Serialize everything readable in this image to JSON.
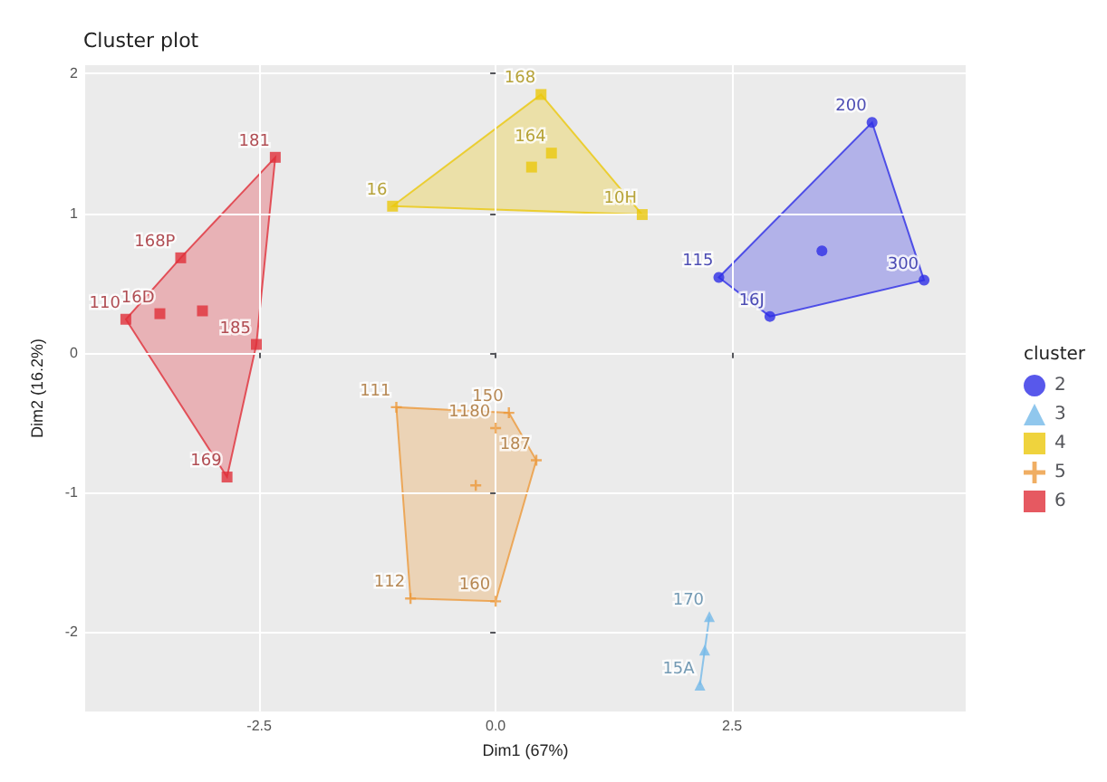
{
  "chart_data": {
    "type": "scatter",
    "title": "Cluster plot",
    "xlabel": "Dim1 (67%)",
    "ylabel": "Dim2 (16.2%)",
    "legend_title": "cluster",
    "legend": "right",
    "xlim": [
      -4.34,
      4.97
    ],
    "ylim": [
      -2.57,
      2.06
    ],
    "xticks": [
      {
        "value": -2.5,
        "label": "-2.5"
      },
      {
        "value": 0,
        "label": "0.0"
      },
      {
        "value": 2.5,
        "label": "2.5"
      }
    ],
    "yticks": [
      -2,
      -1,
      0,
      1,
      2
    ],
    "grid": true,
    "series": [
      {
        "name": "2",
        "color": "#2e2ee6",
        "marker": "circle",
        "x": [
          3.98,
          4.53,
          2.36,
          2.9,
          3.45
        ],
        "values": [
          1.65,
          0.52,
          0.54,
          0.26,
          0.73
        ]
      },
      {
        "name": "3",
        "color": "#74b9e8",
        "marker": "triangle",
        "x": [
          2.26,
          2.16,
          2.21
        ],
        "values": [
          -1.89,
          -2.38,
          -2.13
        ]
      },
      {
        "name": "4",
        "color": "#ebc80c",
        "marker": "square",
        "x": [
          -1.09,
          0.48,
          0.59,
          1.55,
          0.38
        ],
        "values": [
          1.05,
          1.85,
          1.43,
          0.99,
          1.33
        ]
      },
      {
        "name": "5",
        "color": "#ec9a3c",
        "marker": "cross",
        "x": [
          -1.05,
          0,
          0.14,
          0.43,
          -0.9,
          0,
          -0.21
        ],
        "values": [
          -0.39,
          -0.54,
          -0.43,
          -0.77,
          -1.76,
          -1.78,
          -0.95
        ]
      },
      {
        "name": "6",
        "color": "#e0303a",
        "marker": "square",
        "x": [
          -2.33,
          -3.33,
          -3.55,
          -3.91,
          -2.53,
          -2.84,
          -3.1
        ],
        "values": [
          1.4,
          0.68,
          0.28,
          0.24,
          0.06,
          -0.89,
          0.3
        ]
      }
    ],
    "annotations": [
      {
        "text": "200",
        "x": 3.98,
        "y": 1.65
      },
      {
        "text": "300",
        "x": 4.53,
        "y": 0.52
      },
      {
        "text": "115",
        "x": 2.36,
        "y": 0.54
      },
      {
        "text": "16J",
        "x": 2.9,
        "y": 0.26
      },
      {
        "text": "170",
        "x": 2.26,
        "y": -1.89
      },
      {
        "text": "15A",
        "x": 2.16,
        "y": -2.38
      },
      {
        "text": "16",
        "x": -1.09,
        "y": 1.05
      },
      {
        "text": "168",
        "x": 0.48,
        "y": 1.85
      },
      {
        "text": "164",
        "x": 0.59,
        "y": 1.43
      },
      {
        "text": "10H",
        "x": 1.55,
        "y": 0.99
      },
      {
        "text": "111",
        "x": -1.05,
        "y": -0.39
      },
      {
        "text": "1180",
        "x": 0,
        "y": -0.54
      },
      {
        "text": "150",
        "x": 0.14,
        "y": -0.43
      },
      {
        "text": "187",
        "x": 0.43,
        "y": -0.77
      },
      {
        "text": "112",
        "x": -0.9,
        "y": -1.76
      },
      {
        "text": "160",
        "x": 0,
        "y": -1.78
      },
      {
        "text": "181",
        "x": -2.33,
        "y": 1.4
      },
      {
        "text": "168P",
        "x": -3.33,
        "y": 0.68
      },
      {
        "text": "16D",
        "x": -3.55,
        "y": 0.28
      },
      {
        "text": "110",
        "x": -3.91,
        "y": 0.24
      },
      {
        "text": "185",
        "x": -2.53,
        "y": 0.06
      },
      {
        "text": "169",
        "x": -2.84,
        "y": -0.89
      }
    ]
  }
}
